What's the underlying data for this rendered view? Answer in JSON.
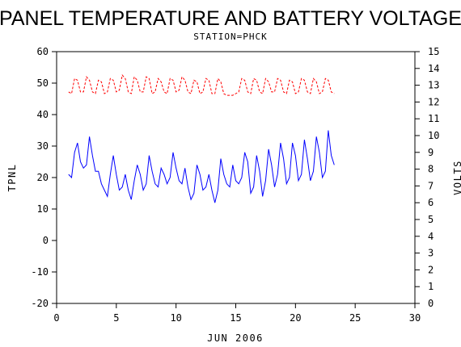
{
  "chart_data": {
    "type": "line",
    "title": "PANEL TEMPERATURE AND BATTERY VOLTAGE",
    "subtitle": "STATION=PHCK",
    "xlabel": "JUN 2006",
    "ylabel": "TPNL",
    "y2label": "VOLTS",
    "xlim": [
      0,
      30
    ],
    "ylim": [
      -20,
      60
    ],
    "y2lim": [
      0,
      15
    ],
    "xticks": [
      0,
      5,
      10,
      15,
      20,
      25,
      30
    ],
    "yticks": [
      -20,
      -10,
      0,
      10,
      20,
      30,
      40,
      50,
      60
    ],
    "y2ticks": [
      0,
      1,
      2,
      3,
      4,
      5,
      6,
      7,
      8,
      9,
      10,
      11,
      12,
      13,
      14,
      15
    ],
    "grid": false,
    "series": [
      {
        "name": "",
        "axis": "left",
        "color": "#0000ff",
        "style": "solid",
        "x": [
          1.0,
          1.25,
          1.5,
          1.75,
          2.0,
          2.25,
          2.5,
          2.75,
          3.0,
          3.25,
          3.5,
          3.75,
          4.0,
          4.25,
          4.5,
          4.75,
          5.0,
          5.25,
          5.5,
          5.75,
          6.0,
          6.25,
          6.5,
          6.75,
          7.0,
          7.25,
          7.5,
          7.75,
          8.0,
          8.25,
          8.5,
          8.75,
          9.0,
          9.25,
          9.5,
          9.75,
          10.0,
          10.25,
          10.5,
          10.75,
          11.0,
          11.25,
          11.5,
          11.75,
          12.0,
          12.25,
          12.5,
          12.75,
          13.0,
          13.25,
          13.5,
          13.75,
          14.0,
          14.25,
          14.5,
          14.75,
          15.0,
          15.25,
          15.5,
          15.75,
          16.0,
          16.25,
          16.5,
          16.75,
          17.0,
          17.25,
          17.5,
          17.75,
          18.0,
          18.25,
          18.5,
          18.75,
          19.0,
          19.25,
          19.5,
          19.75,
          20.0,
          20.25,
          20.5,
          20.75,
          21.0,
          21.25,
          21.5,
          21.75,
          22.0,
          22.25,
          22.5,
          22.75,
          23.0,
          23.25
        ],
        "values": [
          21,
          20,
          28,
          31,
          25,
          23,
          24,
          33,
          27,
          22,
          22,
          18,
          16,
          14,
          21,
          27,
          21,
          16,
          17,
          21,
          16,
          13,
          19,
          24,
          21,
          16,
          18,
          27,
          22,
          18,
          17,
          23,
          21,
          18,
          20,
          28,
          23,
          19,
          18,
          23,
          17,
          13,
          15,
          24,
          21,
          16,
          17,
          21,
          16,
          12,
          16,
          26,
          21,
          18,
          17,
          24,
          19,
          18,
          20,
          28,
          25,
          15,
          17,
          27,
          22,
          14,
          19,
          29,
          24,
          17,
          21,
          31,
          26,
          18,
          20,
          31,
          27,
          19,
          21,
          32,
          26,
          19,
          22,
          33,
          28,
          20,
          22,
          35,
          27,
          24
        ]
      },
      {
        "name": "",
        "axis": "right",
        "color": "#ff0000",
        "style": "dashed",
        "x": [
          1.0,
          1.25,
          1.5,
          1.75,
          2.0,
          2.25,
          2.5,
          2.75,
          3.0,
          3.25,
          3.5,
          3.75,
          4.0,
          4.25,
          4.5,
          4.75,
          5.0,
          5.25,
          5.5,
          5.75,
          6.0,
          6.25,
          6.5,
          6.75,
          7.0,
          7.25,
          7.5,
          7.75,
          8.0,
          8.25,
          8.5,
          8.75,
          9.0,
          9.25,
          9.5,
          9.75,
          10.0,
          10.25,
          10.5,
          10.75,
          11.0,
          11.25,
          11.5,
          11.75,
          12.0,
          12.25,
          12.5,
          12.75,
          13.0,
          13.25,
          13.5,
          13.75,
          14.0,
          14.25,
          14.5,
          14.75,
          15.0,
          15.25,
          15.5,
          15.75,
          16.0,
          16.25,
          16.5,
          16.75,
          17.0,
          17.25,
          17.5,
          17.75,
          18.0,
          18.25,
          18.5,
          18.75,
          19.0,
          19.25,
          19.5,
          19.75,
          20.0,
          20.25,
          20.5,
          20.75,
          21.0,
          21.25,
          21.5,
          21.75,
          22.0,
          22.25,
          22.5,
          22.75,
          23.0,
          23.25
        ],
        "values": [
          12.6,
          12.5,
          13.4,
          13.3,
          12.6,
          12.6,
          13.5,
          13.3,
          12.6,
          12.5,
          13.3,
          13.2,
          12.5,
          12.6,
          13.4,
          13.3,
          12.6,
          12.7,
          13.6,
          13.4,
          12.6,
          12.5,
          13.5,
          13.3,
          12.6,
          12.6,
          13.5,
          13.4,
          12.5,
          12.6,
          13.4,
          13.2,
          12.6,
          12.5,
          13.4,
          13.3,
          12.6,
          12.7,
          13.5,
          13.3,
          12.6,
          12.5,
          13.3,
          13.2,
          12.5,
          12.6,
          13.4,
          13.3,
          12.5,
          12.5,
          13.4,
          13.2,
          12.5,
          12.4,
          12.4,
          12.4,
          12.5,
          12.6,
          13.4,
          13.3,
          12.6,
          12.5,
          13.4,
          13.3,
          12.6,
          12.5,
          13.4,
          13.2,
          12.6,
          12.6,
          13.4,
          13.3,
          12.6,
          12.5,
          13.3,
          13.2,
          12.5,
          12.6,
          13.4,
          13.3,
          12.6,
          12.5,
          13.4,
          13.2,
          12.5,
          12.6,
          13.4,
          13.3,
          12.6,
          12.5
        ]
      }
    ]
  }
}
